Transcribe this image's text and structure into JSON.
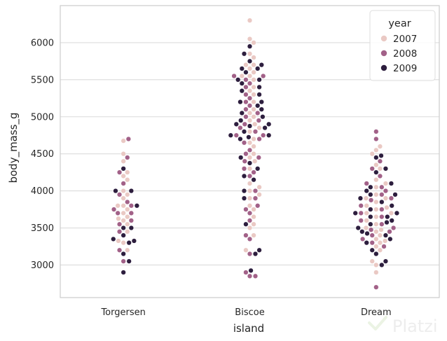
{
  "chart_data": {
    "type": "scatter",
    "kind": "swarmplot",
    "xlabel": "island",
    "ylabel": "body_mass_g",
    "categories": [
      "Torgersen",
      "Biscoe",
      "Dream"
    ],
    "ylim": [
      2560,
      6500
    ],
    "yticks": [
      3000,
      3500,
      4000,
      4500,
      5000,
      5500,
      6000
    ],
    "grid": "horizontal",
    "legend": {
      "title": "year",
      "placement": "top-right"
    },
    "series": [
      {
        "name": "2007",
        "color": "#eac9c4",
        "values": {
          "Torgersen": [
            4675,
            4500,
            4400,
            4250,
            4200,
            4150,
            4000,
            3950,
            3900,
            3800,
            3800,
            3750,
            3700,
            3650,
            3625,
            3600,
            3550,
            3450,
            3325,
            3300,
            3200
          ],
          "Biscoe": [
            6300,
            6050,
            6000,
            5850,
            5800,
            5700,
            5700,
            5650,
            5600,
            5550,
            5550,
            5500,
            5400,
            5350,
            5300,
            5200,
            5100,
            5050,
            5000,
            4950,
            4900,
            4850,
            4800,
            4700,
            4650,
            4600,
            4500,
            4450,
            4400,
            4300,
            4100,
            4050,
            4000,
            3950,
            3900,
            3800,
            3750,
            3650,
            3550,
            3500,
            3400,
            3200
          ],
          "Dream": [
            4600,
            4550,
            4500,
            4350,
            4300,
            4150,
            4100,
            4050,
            3950,
            3900,
            3900,
            3850,
            3800,
            3775,
            3750,
            3700,
            3700,
            3650,
            3600,
            3550,
            3500,
            3475,
            3450,
            3400,
            3350,
            3325,
            3300,
            3250,
            3200,
            3050,
            3000,
            2900
          ]
        }
      },
      {
        "name": "2008",
        "color": "#a26188",
        "values": {
          "Torgersen": [
            4700,
            4450,
            4250,
            4100,
            3950,
            3850,
            3800,
            3750,
            3700,
            3700,
            3600,
            3550,
            3450,
            3200,
            3050
          ],
          "Biscoe": [
            5550,
            5550,
            5500,
            5450,
            5400,
            5300,
            5250,
            5200,
            5150,
            5100,
            5050,
            5000,
            4950,
            4900,
            4850,
            4800,
            4750,
            4750,
            4700,
            4650,
            4550,
            4500,
            4450,
            4400,
            4300,
            4250,
            4200,
            4000,
            3900,
            3800,
            3750,
            3700,
            3600,
            3400,
            3350,
            3150,
            2900,
            2850,
            2850
          ],
          "Dream": [
            4800,
            4700,
            4400,
            4300,
            4200,
            4100,
            4050,
            4000,
            3950,
            3900,
            3875,
            3800,
            3750,
            3700,
            3650,
            3600,
            3550,
            3500,
            3475,
            3450,
            3400,
            3350,
            3300,
            3250,
            2700
          ]
        }
      },
      {
        "name": "2009",
        "color": "#2d1e3e",
        "values": {
          "Torgersen": [
            4300,
            4000,
            4000,
            3800,
            3500,
            3500,
            3400,
            3350,
            3325,
            3300,
            3150,
            3050,
            2900
          ],
          "Biscoe": [
            5950,
            5850,
            5750,
            5700,
            5650,
            5650,
            5600,
            5500,
            5500,
            5450,
            5400,
            5350,
            5300,
            5200,
            5200,
            5150,
            5100,
            5050,
            5000,
            4950,
            4900,
            4900,
            4875,
            4850,
            4800,
            4750,
            4750,
            4725,
            4700,
            4450,
            4375,
            4300,
            4200,
            4150,
            4000,
            3900,
            3550,
            3200,
            3150,
            2925
          ],
          "Dream": [
            4475,
            4450,
            4300,
            4250,
            4100,
            4050,
            4000,
            3950,
            3950,
            3900,
            3850,
            3800,
            3750,
            3700,
            3700,
            3650,
            3650,
            3600,
            3575,
            3550,
            3500,
            3450,
            3425,
            3400,
            3350,
            3300,
            3200,
            3150,
            3050,
            3000
          ]
        }
      }
    ]
  }
}
